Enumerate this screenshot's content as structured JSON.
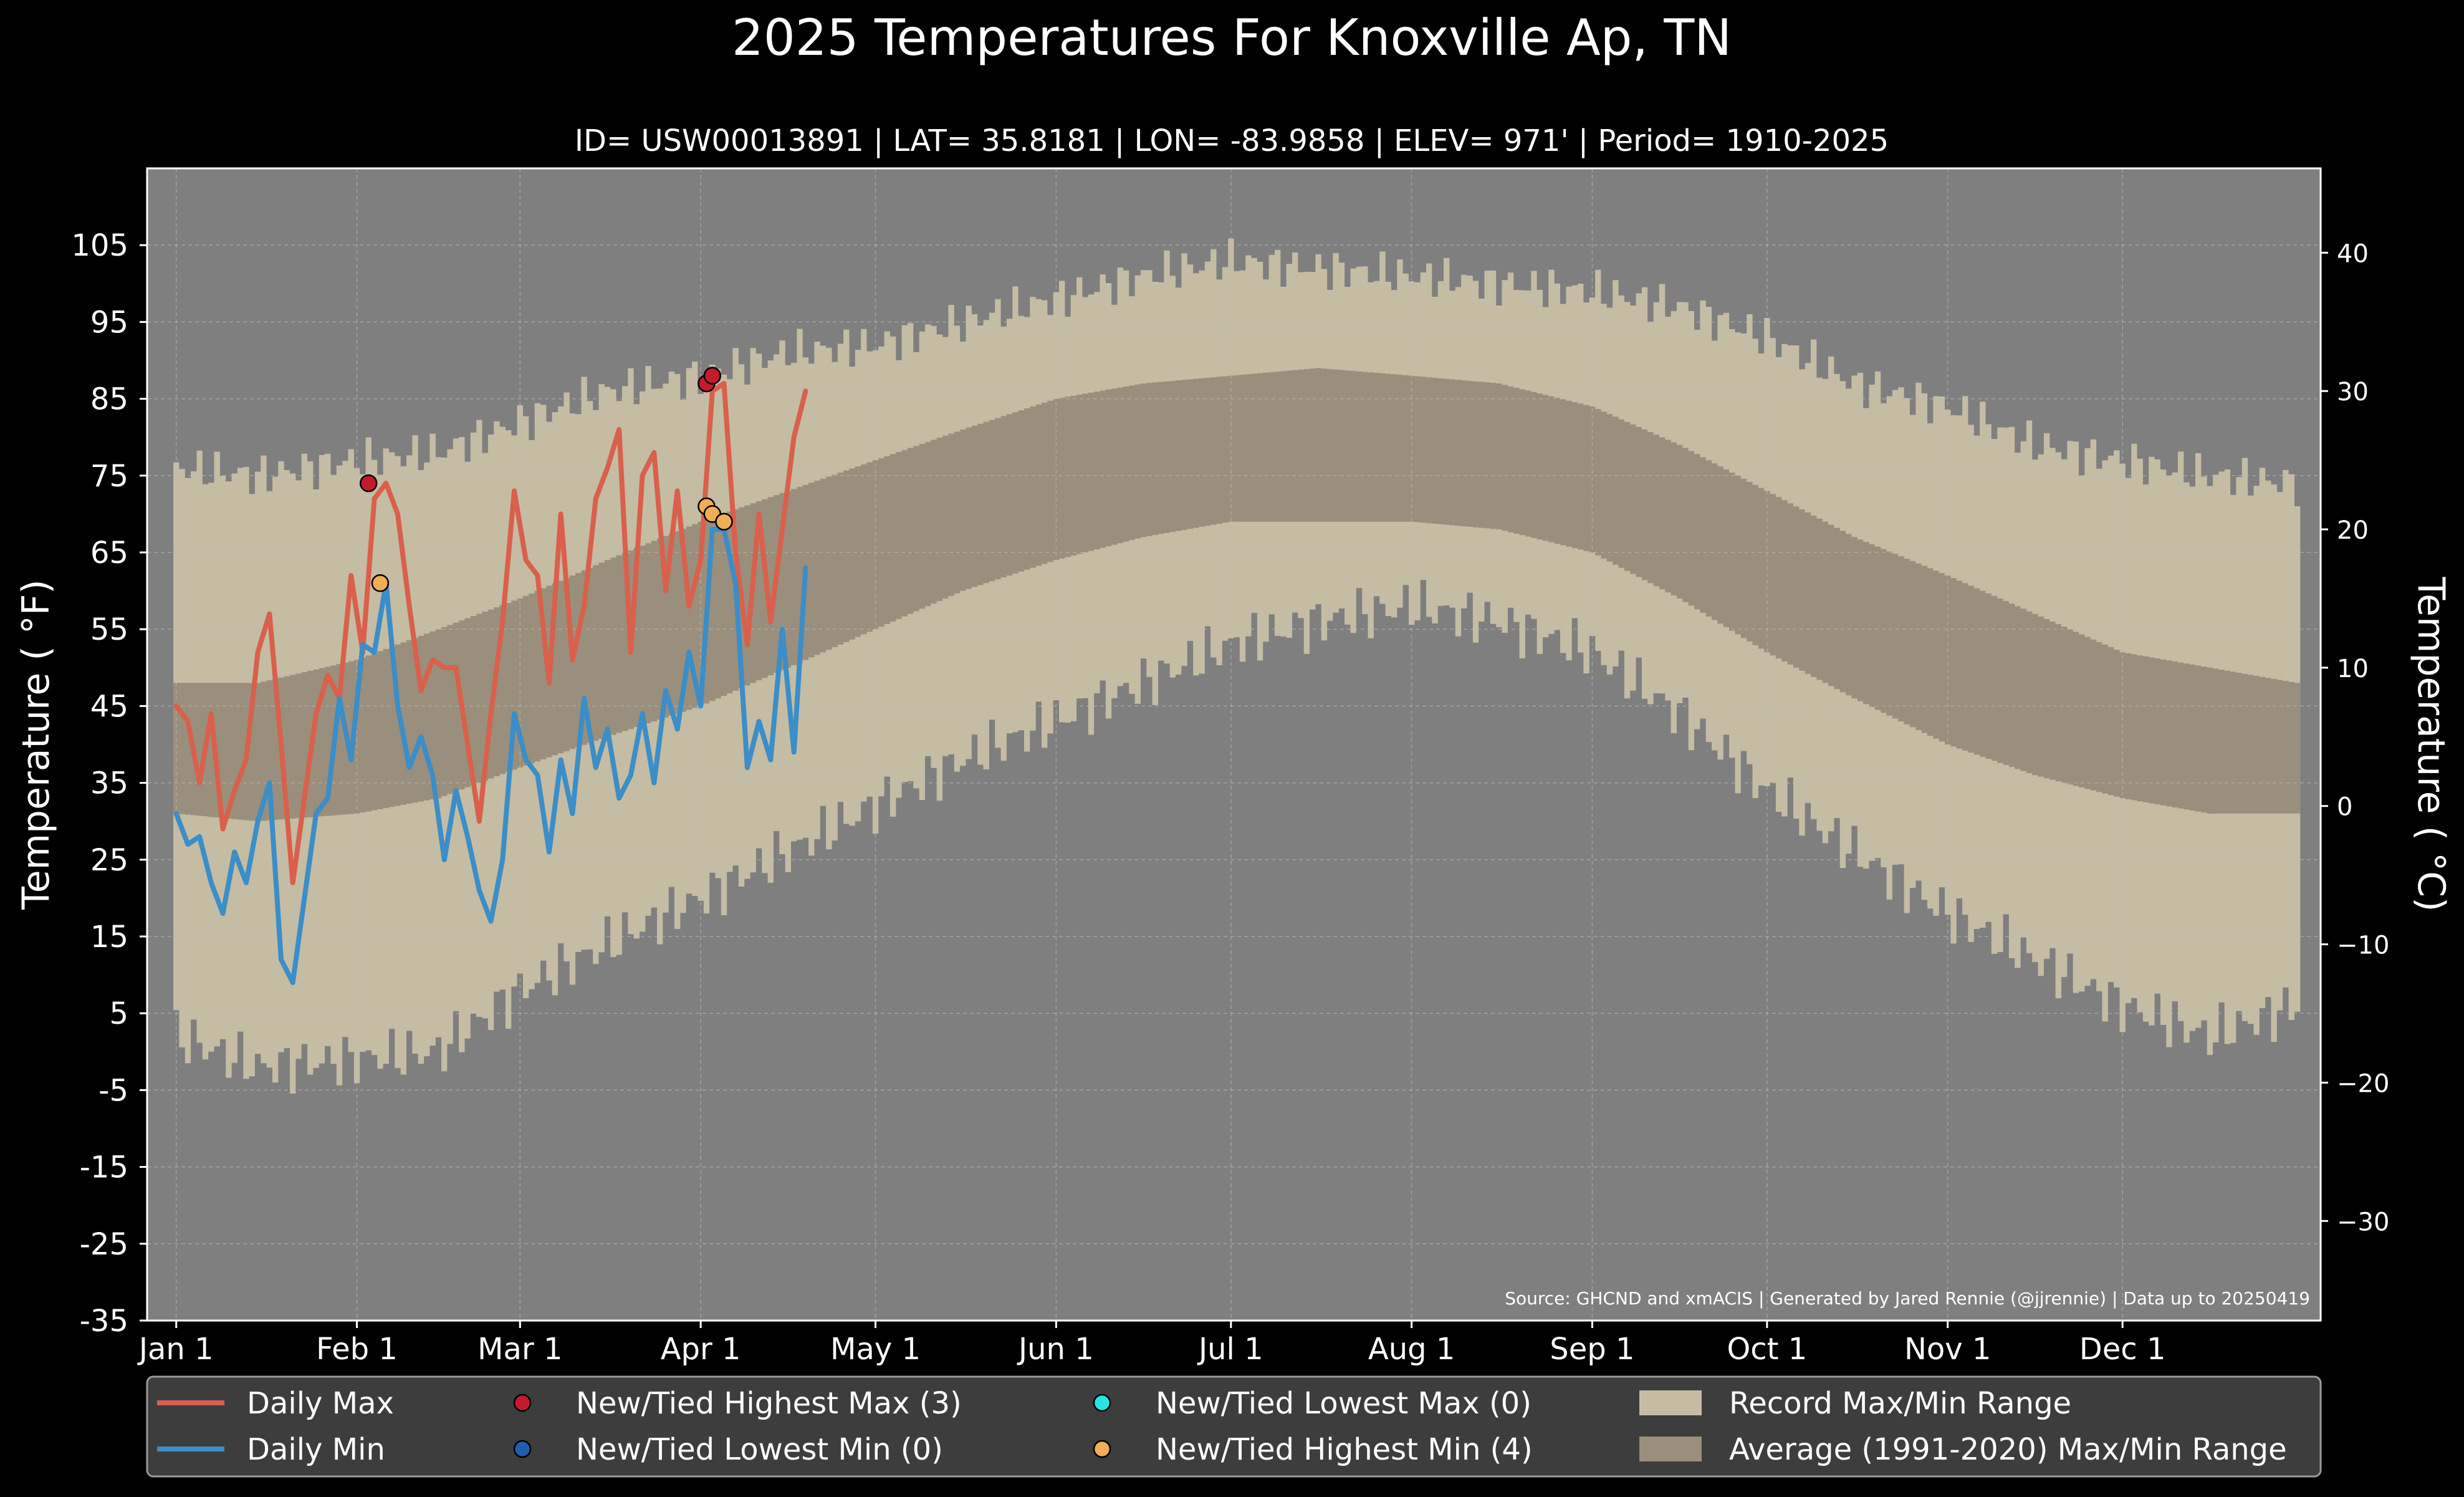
{
  "chart_data": {
    "type": "line",
    "title": "2025 Temperatures For Knoxville Ap, TN",
    "subtitle": "ID= USW00013891 | LAT= 35.8181 | LON= -83.9858 | ELEV= 971' | Period= 1910-2025",
    "ylabel": "Temperature ( $^\\circ$F)",
    "ylabel_display": "Temperature ( °F)",
    "ylabel_right": "Temperature ( $^\\circ$C)",
    "ylabel_right_display": "Temperature ( °C)",
    "ylim": [
      -35,
      115
    ],
    "ylim_right_celsius": [
      -37.2,
      46.1
    ],
    "yticks": [
      -35,
      -25,
      -15,
      -5,
      5,
      15,
      25,
      35,
      45,
      55,
      65,
      75,
      85,
      95,
      105
    ],
    "yticks_right": [
      -30,
      -20,
      -10,
      0,
      10,
      20,
      30,
      40
    ],
    "xlim_days": [
      -4,
      369
    ],
    "xticks": [
      {
        "day": 1,
        "label": "Jan 1"
      },
      {
        "day": 32,
        "label": "Feb 1"
      },
      {
        "day": 60,
        "label": "Mar 1"
      },
      {
        "day": 91,
        "label": "Apr 1"
      },
      {
        "day": 121,
        "label": "May 1"
      },
      {
        "day": 152,
        "label": "Jun 1"
      },
      {
        "day": 182,
        "label": "Jul 1"
      },
      {
        "day": 213,
        "label": "Aug 1"
      },
      {
        "day": 244,
        "label": "Sep 1"
      },
      {
        "day": 274,
        "label": "Oct 1"
      },
      {
        "day": 305,
        "label": "Nov 1"
      },
      {
        "day": 335,
        "label": "Dec 1"
      }
    ],
    "grid": true,
    "record_range": {
      "name": "Record Max/Min Range",
      "days": [
        1,
        15,
        32,
        46,
        60,
        75,
        91,
        106,
        121,
        136,
        152,
        167,
        182,
        197,
        213,
        228,
        244,
        259,
        274,
        289,
        305,
        320,
        335,
        350,
        365
      ],
      "max": [
        76,
        75,
        77,
        78,
        82,
        86,
        88,
        91,
        92,
        95,
        98,
        101,
        103,
        102,
        101,
        100,
        99,
        97,
        93,
        87,
        84,
        79,
        77,
        75,
        74
      ],
      "min": [
        2,
        -2,
        -1,
        0,
        8,
        14,
        20,
        26,
        32,
        38,
        43,
        48,
        53,
        56,
        58,
        56,
        52,
        44,
        34,
        26,
        18,
        12,
        6,
        2,
        6
      ]
    },
    "normal_range": {
      "name": "Average (1991-2020) Max/Min Range",
      "days": [
        1,
        15,
        32,
        46,
        60,
        75,
        91,
        106,
        121,
        136,
        152,
        167,
        182,
        197,
        213,
        228,
        244,
        259,
        274,
        289,
        305,
        320,
        335,
        350,
        365
      ],
      "max": [
        48,
        48,
        51,
        55,
        59,
        64,
        69,
        73,
        77,
        81,
        85,
        87,
        88,
        89,
        88,
        87,
        84,
        79,
        73,
        67,
        62,
        57,
        52,
        50,
        48
      ],
      "min": [
        31,
        30,
        31,
        33,
        37,
        41,
        45,
        50,
        55,
        60,
        64,
        67,
        69,
        69,
        69,
        68,
        65,
        59,
        52,
        46,
        40,
        36,
        33,
        31,
        31
      ]
    },
    "series": [
      {
        "name": "Daily Max",
        "color": "#d9604c",
        "days": [
          1,
          3,
          5,
          7,
          9,
          11,
          13,
          15,
          17,
          19,
          21,
          23,
          25,
          27,
          29,
          31,
          33,
          35,
          37,
          39,
          41,
          43,
          45,
          47,
          49,
          51,
          53,
          55,
          57,
          59,
          61,
          63,
          65,
          67,
          69,
          71,
          73,
          75,
          77,
          79,
          81,
          83,
          85,
          87,
          89,
          91,
          93,
          95,
          97,
          99,
          101,
          103,
          105,
          107,
          109
        ],
        "values": [
          45,
          43,
          35,
          44,
          29,
          34,
          38,
          52,
          57,
          40,
          22,
          33,
          44,
          49,
          46,
          62,
          52,
          72,
          74,
          70,
          58,
          47,
          51,
          50,
          50,
          40,
          30,
          44,
          56,
          73,
          64,
          62,
          48,
          70,
          51,
          58,
          72,
          76,
          81,
          52,
          75,
          78,
          60,
          73,
          58,
          64,
          86,
          87,
          65,
          53,
          70,
          56,
          68,
          80,
          86
        ]
      },
      {
        "name": "Daily Min",
        "color": "#3b8ec7",
        "days": [
          1,
          3,
          5,
          7,
          9,
          11,
          13,
          15,
          17,
          19,
          21,
          23,
          25,
          27,
          29,
          31,
          33,
          35,
          37,
          39,
          41,
          43,
          45,
          47,
          49,
          51,
          53,
          55,
          57,
          59,
          61,
          63,
          65,
          67,
          69,
          71,
          73,
          75,
          77,
          79,
          81,
          83,
          85,
          87,
          89,
          91,
          93,
          95,
          97,
          99,
          101,
          103,
          105,
          107,
          109
        ],
        "values": [
          31,
          27,
          28,
          22,
          18,
          26,
          22,
          30,
          35,
          12,
          9,
          20,
          31,
          33,
          46,
          38,
          53,
          52,
          61,
          45,
          37,
          41,
          36,
          25,
          34,
          28,
          21,
          17,
          25,
          44,
          38,
          36,
          26,
          38,
          31,
          46,
          37,
          42,
          33,
          36,
          44,
          35,
          47,
          42,
          52,
          45,
          68,
          68,
          61,
          37,
          43,
          38,
          55,
          39,
          63
        ]
      }
    ],
    "markers": [
      {
        "name": "New/Tied Highest Max (3)",
        "color": "#c41a2e",
        "points": [
          {
            "day": 34,
            "value": 74
          },
          {
            "day": 92,
            "value": 87
          },
          {
            "day": 93,
            "value": 88
          }
        ]
      },
      {
        "name": "New/Tied Lowest Min (0)",
        "color": "#1f5fb0",
        "points": []
      },
      {
        "name": "New/Tied Lowest Max (0)",
        "color": "#27e4e4",
        "points": []
      },
      {
        "name": "New/Tied Highest Min (4)",
        "color": "#f2ad55",
        "points": [
          {
            "day": 36,
            "value": 61
          },
          {
            "day": 92,
            "value": 71
          },
          {
            "day": 93,
            "value": 70
          },
          {
            "day": 95,
            "value": 69
          }
        ]
      }
    ],
    "source_note": "Source: GHCND and xmACIS | Generated by Jared Rennie (@jjrennie) | Data up to 20250419",
    "legend": {
      "placement": "bottom",
      "items": [
        {
          "label": "Daily Max",
          "kind": "line",
          "color": "#d9604c"
        },
        {
          "label": "Daily Min",
          "kind": "line",
          "color": "#3b8ec7"
        },
        {
          "label": "New/Tied Highest Max (3)",
          "kind": "dot",
          "color": "#c41a2e"
        },
        {
          "label": "New/Tied Lowest Min (0)",
          "kind": "dot",
          "color": "#1f5fb0"
        },
        {
          "label": "New/Tied Lowest Max (0)",
          "kind": "dot",
          "color": "#27e4e4"
        },
        {
          "label": "New/Tied Highest Min (4)",
          "kind": "dot",
          "color": "#f2ad55"
        },
        {
          "label": "Record Max/Min Range",
          "kind": "patch",
          "color": "#c5bca4"
        },
        {
          "label": "Average (1991-2020) Max/Min Range",
          "kind": "patch",
          "color": "#998f7c"
        }
      ]
    },
    "colors": {
      "page_background": "#000000",
      "plot_background": "#7f7f7f",
      "record_fill": "#c5bca4",
      "normal_fill": "#998f7c",
      "grid": "#bbbbbb",
      "legend_background": "#3d3d3d"
    }
  }
}
